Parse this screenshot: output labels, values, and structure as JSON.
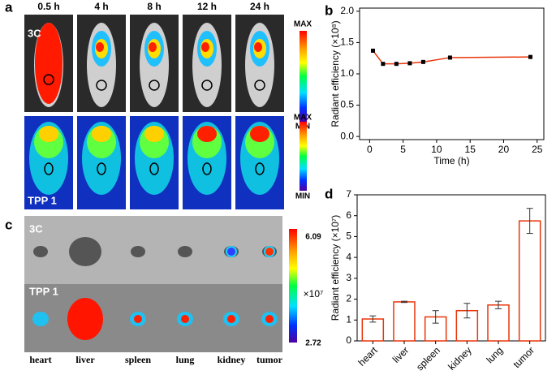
{
  "panels": {
    "a": {
      "label": "a",
      "times": [
        "0.5 h",
        "4 h",
        "8 h",
        "12 h",
        "24 h"
      ],
      "rows": [
        "3C",
        "TPP 1"
      ],
      "scale_max": "MAX",
      "scale_min": "MIN"
    },
    "c": {
      "label": "c",
      "rows": [
        "3C",
        "TPP 1"
      ],
      "organs": [
        "heart",
        "liver",
        "spleen",
        "lung",
        "kidney",
        "tumor"
      ],
      "scale_max": "6.09",
      "scale_unit": "×10⁷",
      "scale_min": "2.72"
    }
  },
  "chart_data": [
    {
      "type": "line",
      "panel": "b",
      "x_label": "Time (h)",
      "y_label": "Radiant efficiency (×10⁸)",
      "x": [
        0.5,
        2,
        4,
        6,
        8,
        12,
        24
      ],
      "values": [
        1.37,
        1.16,
        1.16,
        1.17,
        1.19,
        1.26,
        1.27
      ],
      "color": "#e8350a",
      "marker_color": "#000000",
      "xlim": [
        -1.5,
        26
      ],
      "xticks": [
        0,
        5,
        10,
        15,
        20,
        25
      ],
      "ylim": [
        -0.05,
        2.05
      ],
      "yticks": [
        {
          "value": 0,
          "label": "0.0"
        },
        0.5,
        {
          "value": 1,
          "label": "1.0"
        },
        1.5,
        {
          "value": 2,
          "label": "2.0"
        }
      ]
    },
    {
      "type": "bar",
      "panel": "d",
      "y_label": "Radiant efficiency (×10⁷)",
      "categories": [
        "heart",
        "liver",
        "spleen",
        "kidney",
        "lung",
        "tumor"
      ],
      "values": [
        1.05,
        1.87,
        1.15,
        1.45,
        1.72,
        5.75
      ],
      "errors": [
        0.15,
        0.03,
        0.3,
        0.35,
        0.18,
        0.6
      ],
      "color": "#e8350a",
      "ylim": [
        0,
        7
      ],
      "yticks": [
        0,
        1,
        2,
        3,
        4,
        5,
        6,
        7
      ]
    }
  ]
}
